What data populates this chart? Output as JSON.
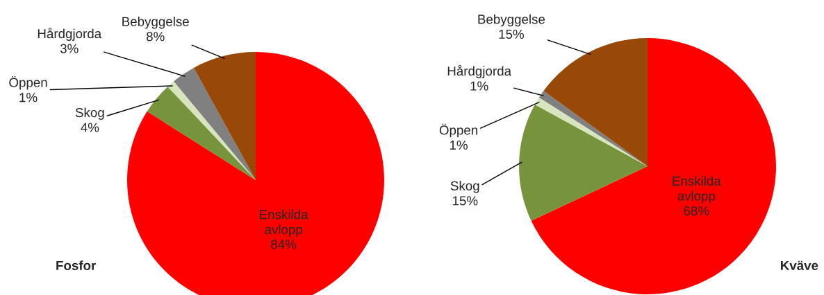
{
  "chart_data": [
    {
      "type": "pie",
      "title": "Fosfor",
      "categories": [
        "Enskilda avlopp",
        "Skog",
        "Öppen",
        "Hårdgjorda",
        "Bebyggelse"
      ],
      "values": [
        84,
        4,
        1,
        3,
        8
      ],
      "colors": [
        "#ff0000",
        "#77933c",
        "#d7e4bd",
        "#808080",
        "#984807"
      ],
      "value_labels": [
        "84%",
        "4%",
        "1%",
        "3%",
        "8%"
      ]
    },
    {
      "type": "pie",
      "title": "Kväve",
      "categories": [
        "Enskilda avlopp",
        "Skog",
        "Öppen",
        "Hårdgjorda",
        "Bebyggelse"
      ],
      "values": [
        68,
        15,
        1,
        1,
        15
      ],
      "colors": [
        "#ff0000",
        "#77933c",
        "#d7e4bd",
        "#808080",
        "#984807"
      ],
      "value_labels": [
        "68%",
        "15%",
        "1%",
        "1%",
        "15%"
      ]
    }
  ]
}
